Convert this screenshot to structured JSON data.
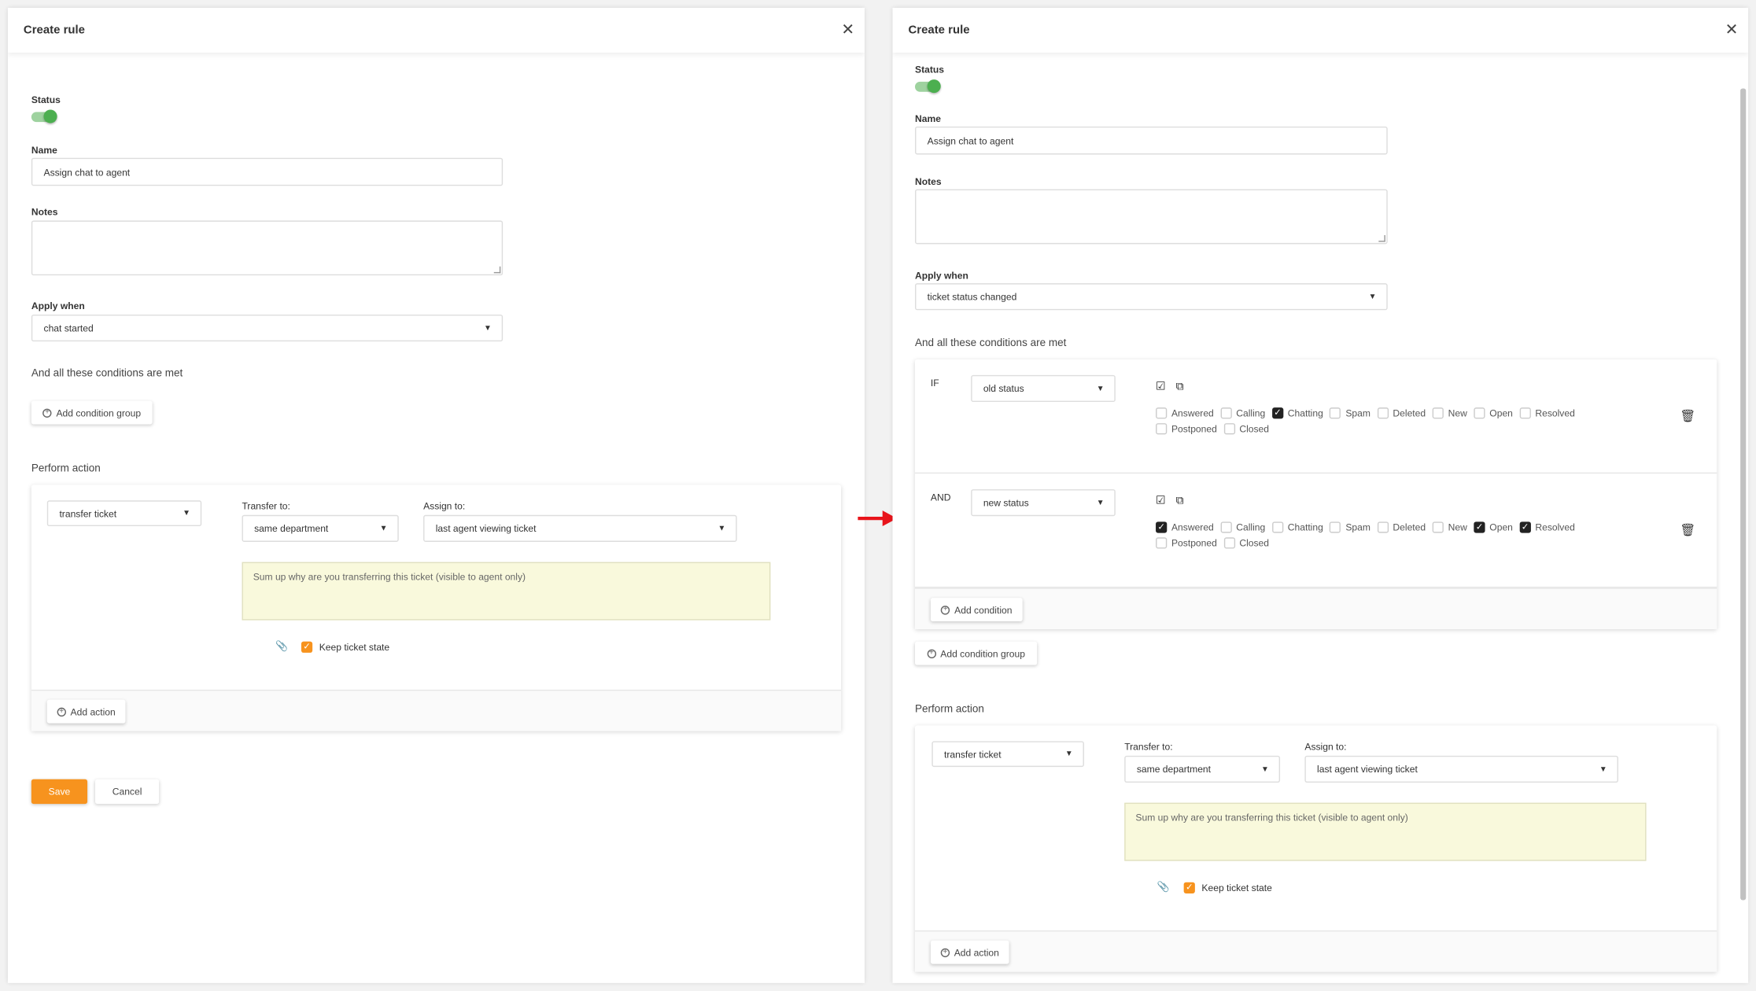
{
  "left": {
    "title": "Create rule",
    "status_label": "Status",
    "status_on": true,
    "name_label": "Name",
    "name_value": "Assign chat to agent",
    "notes_label": "Notes",
    "notes_value": "",
    "apply_label": "Apply when",
    "apply_value": "chat started",
    "conditions_label": "And all these conditions are met",
    "add_condition_group": "Add condition group",
    "perform_label": "Perform action",
    "action": {
      "type": "transfer ticket",
      "transfer_label": "Transfer to:",
      "transfer_value": "same department",
      "assign_label": "Assign to:",
      "assign_value": "last agent viewing ticket",
      "note_placeholder": "Sum up why are you transferring this ticket (visible to agent only)",
      "keep_label": "Keep ticket state",
      "keep_checked": true
    },
    "add_action": "Add action",
    "save": "Save",
    "cancel": "Cancel"
  },
  "right": {
    "title": "Create rule",
    "status_label": "Status",
    "status_on": true,
    "name_label": "Name",
    "name_value": "Assign chat to agent",
    "notes_label": "Notes",
    "notes_value": "",
    "apply_label": "Apply when",
    "apply_value": "ticket status changed",
    "conditions_label": "And all these conditions are met",
    "conditions": [
      {
        "prefix": "IF",
        "field": "old status",
        "options": [
          {
            "label": "Answered",
            "checked": false
          },
          {
            "label": "Calling",
            "checked": false
          },
          {
            "label": "Chatting",
            "checked": true
          },
          {
            "label": "Spam",
            "checked": false
          },
          {
            "label": "Deleted",
            "checked": false
          },
          {
            "label": "New",
            "checked": false
          },
          {
            "label": "Open",
            "checked": false
          },
          {
            "label": "Resolved",
            "checked": false
          },
          {
            "label": "Postponed",
            "checked": false
          },
          {
            "label": "Closed",
            "checked": false
          }
        ]
      },
      {
        "prefix": "AND",
        "field": "new status",
        "options": [
          {
            "label": "Answered",
            "checked": true
          },
          {
            "label": "Calling",
            "checked": false
          },
          {
            "label": "Chatting",
            "checked": false
          },
          {
            "label": "Spam",
            "checked": false
          },
          {
            "label": "Deleted",
            "checked": false
          },
          {
            "label": "New",
            "checked": false
          },
          {
            "label": "Open",
            "checked": true
          },
          {
            "label": "Resolved",
            "checked": true
          },
          {
            "label": "Postponed",
            "checked": false
          },
          {
            "label": "Closed",
            "checked": false
          }
        ]
      }
    ],
    "add_condition": "Add condition",
    "add_condition_group": "Add condition group",
    "perform_label": "Perform action",
    "action": {
      "type": "transfer ticket",
      "transfer_label": "Transfer to:",
      "transfer_value": "same department",
      "assign_label": "Assign to:",
      "assign_value": "last agent viewing ticket",
      "note_placeholder": "Sum up why are you transferring this ticket (visible to agent only)",
      "keep_label": "Keep ticket state",
      "keep_checked": true
    },
    "add_action": "Add action"
  },
  "colors": {
    "accent": "#f7931e",
    "toggle": "#4caf50",
    "arrow": "#e8141b",
    "note_bg": "#f9f9dc"
  }
}
